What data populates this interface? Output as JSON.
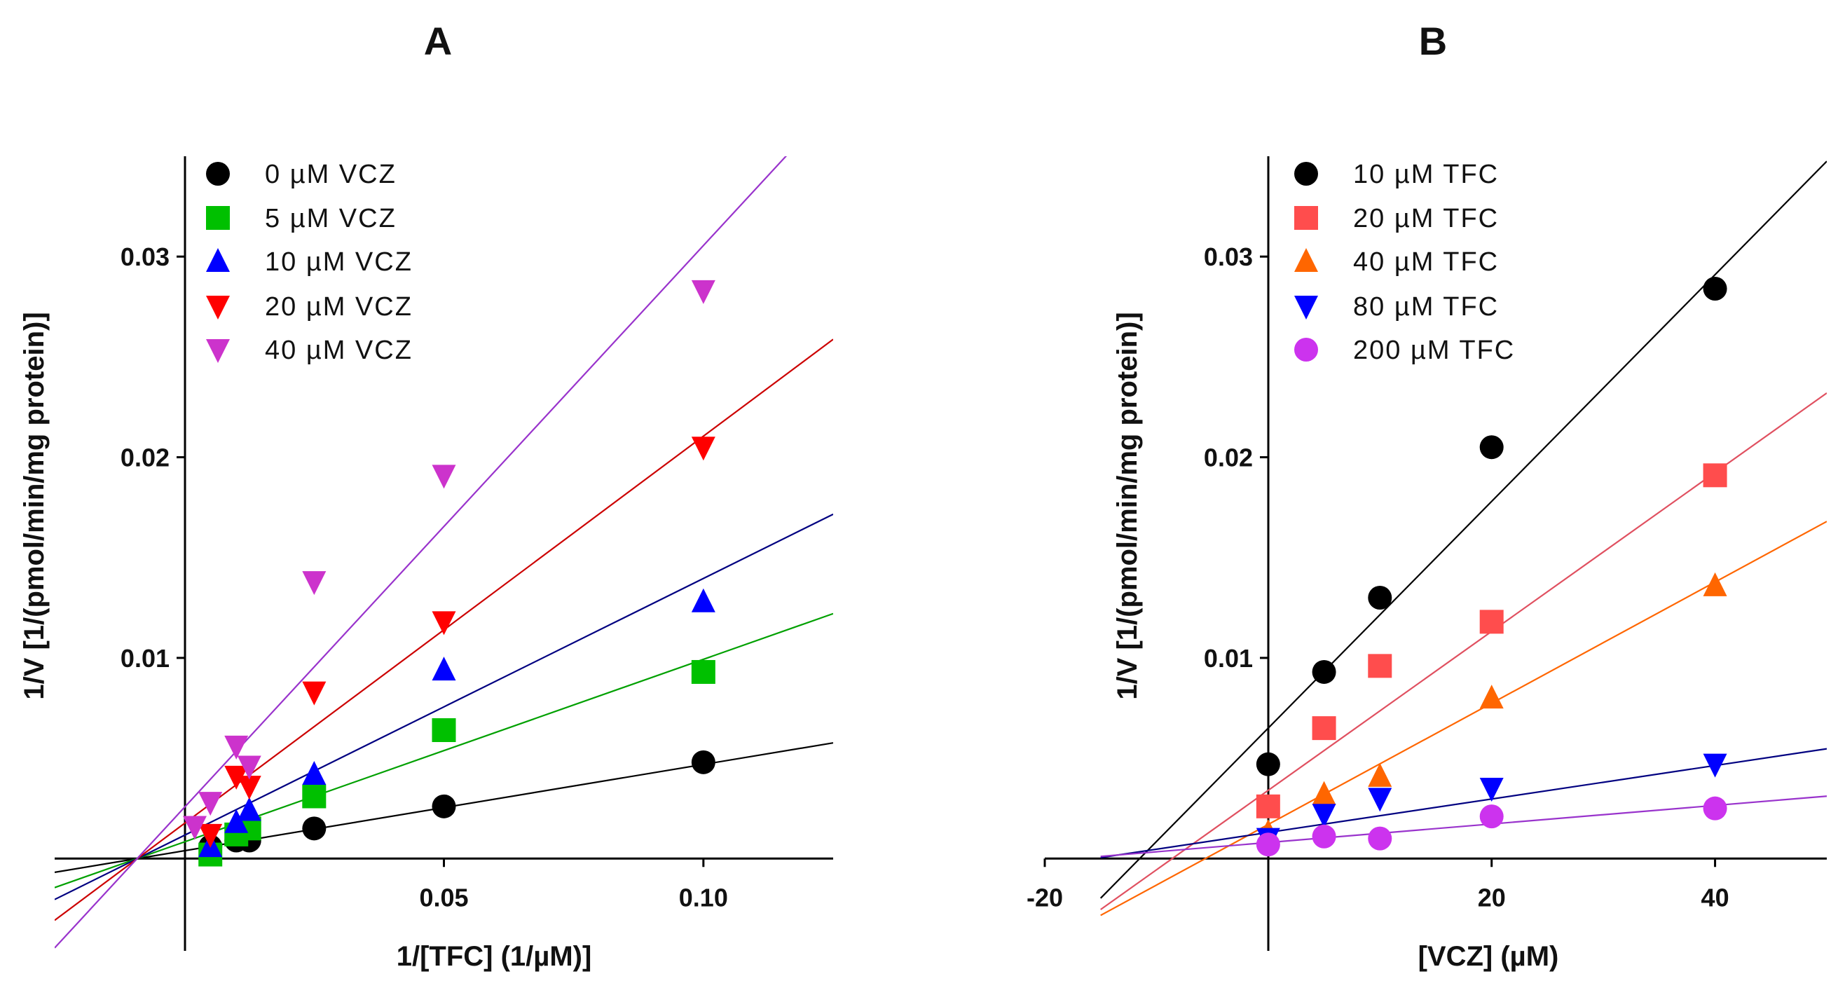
{
  "chart_data": [
    {
      "type": "scatter",
      "title": "A",
      "xlabel": "1/[TFC] (1/µM)]",
      "ylabel": "1/V [1/(pmol/min/mg protein)]",
      "xlim": [
        -0.025,
        0.125
      ],
      "ylim": [
        -0.0046,
        0.035
      ],
      "xticks": [
        {
          "v": 0.05,
          "label": "0.05"
        },
        {
          "v": 0.1,
          "label": "0.10"
        }
      ],
      "yticks": [
        {
          "v": 0.01,
          "label": "0.01"
        },
        {
          "v": 0.02,
          "label": "0.02"
        },
        {
          "v": 0.03,
          "label": "0.03"
        }
      ],
      "legend_position": "top-left",
      "fit": "linear",
      "series": [
        {
          "name": "0 µM VCZ",
          "marker": "circle",
          "color": "#000000",
          "line_color": "#000000",
          "slope": 0.043,
          "intercept": 0.00039,
          "x": [
            0.005,
            0.01,
            0.0125,
            0.025,
            0.05,
            0.1
          ],
          "y": [
            0.0006,
            0.0009,
            0.0009,
            0.0015,
            0.0026,
            0.0048
          ]
        },
        {
          "name": "5 µM VCZ",
          "marker": "square",
          "color": "#00c000",
          "line_color": "#00a000",
          "slope": 0.091,
          "intercept": 0.00083,
          "x": [
            0.005,
            0.01,
            0.0125,
            0.025,
            0.05,
            0.1
          ],
          "y": [
            0.0002,
            0.0012,
            0.0015,
            0.0031,
            0.0064,
            0.0093
          ]
        },
        {
          "name": "10 µM VCZ",
          "marker": "triangle-up",
          "color": "#0000ff",
          "line_color": "#000080",
          "slope": 0.128,
          "intercept": 0.00116,
          "x": [
            0.005,
            0.01,
            0.0125,
            0.025,
            0.05,
            0.1
          ],
          "y": [
            0.0006,
            0.0018,
            0.0024,
            0.0042,
            0.0094,
            0.0128
          ]
        },
        {
          "name": "20 µM VCZ",
          "marker": "triangle-down",
          "color": "#ff0000",
          "line_color": "#cc0000",
          "slope": 0.193,
          "intercept": 0.00175,
          "x": [
            0.005,
            0.01,
            0.0125,
            0.025,
            0.05,
            0.1
          ],
          "y": [
            0.0012,
            0.0041,
            0.0036,
            0.0083,
            0.0118,
            0.0205
          ]
        },
        {
          "name": "40 µM VCZ",
          "marker": "triangle-down",
          "color": "#cc33cc",
          "line_color": "#9933cc",
          "slope": 0.28,
          "intercept": 0.00255,
          "x": [
            0.002,
            0.005,
            0.01,
            0.0125,
            0.025,
            0.05,
            0.1
          ],
          "y": [
            0.0016,
            0.0028,
            0.0056,
            0.0046,
            0.0138,
            0.0191,
            0.0283
          ]
        }
      ]
    },
    {
      "type": "scatter",
      "title": "B",
      "xlabel": "[VCZ] (µM)",
      "ylabel": "1/V [1/(pmol/min/mg protein)]",
      "xlim": [
        -20,
        50
      ],
      "ylim": [
        -0.0046,
        0.035
      ],
      "line_xrange": [
        -15,
        50
      ],
      "xticks": [
        {
          "v": -20,
          "label": "-20"
        },
        {
          "v": 20,
          "label": "20"
        },
        {
          "v": 40,
          "label": "40"
        }
      ],
      "yticks": [
        {
          "v": 0.01,
          "label": "0.01"
        },
        {
          "v": 0.02,
          "label": "0.02"
        },
        {
          "v": 0.03,
          "label": "0.03"
        }
      ],
      "legend_position": "top-left",
      "fit": "linear",
      "series": [
        {
          "name": "10 µM TFC",
          "marker": "circle",
          "color": "#000000",
          "line_color": "#000000",
          "slope": 0.000565,
          "intercept": 0.0065,
          "x": [
            0,
            5,
            10,
            20,
            40
          ],
          "y": [
            0.0047,
            0.0093,
            0.013,
            0.0205,
            0.0284
          ]
        },
        {
          "name": "20 µM TFC",
          "marker": "square",
          "color": "#ff4d4d",
          "line_color": "#e05060",
          "slope": 0.000396,
          "intercept": 0.0034,
          "x": [
            0,
            5,
            10,
            20,
            40
          ],
          "y": [
            0.0026,
            0.0065,
            0.0096,
            0.0118,
            0.0191
          ]
        },
        {
          "name": "40 µM TFC",
          "marker": "triangle-up",
          "color": "#ff6600",
          "line_color": "#ff6600",
          "slope": 0.000302,
          "intercept": 0.0017,
          "x": [
            0,
            5,
            10,
            20,
            40
          ],
          "y": [
            0.0013,
            0.0032,
            0.0041,
            0.008,
            0.0136
          ]
        },
        {
          "name": "80 µM TFC",
          "marker": "triangle-down",
          "color": "#0000ff",
          "line_color": "#000080",
          "slope": 8.34e-05,
          "intercept": 0.0013,
          "x": [
            0,
            5,
            10,
            20,
            40
          ],
          "y": [
            0.001,
            0.0022,
            0.003,
            0.0035,
            0.0047
          ]
        },
        {
          "name": "200 µM TFC",
          "marker": "circle",
          "color": "#cc33ee",
          "line_color": "#9933cc",
          "slope": 4.62e-05,
          "intercept": 0.0008,
          "x": [
            0,
            5,
            10,
            20,
            40
          ],
          "y": [
            0.0007,
            0.0011,
            0.001,
            0.0021,
            0.0025
          ]
        }
      ]
    }
  ]
}
